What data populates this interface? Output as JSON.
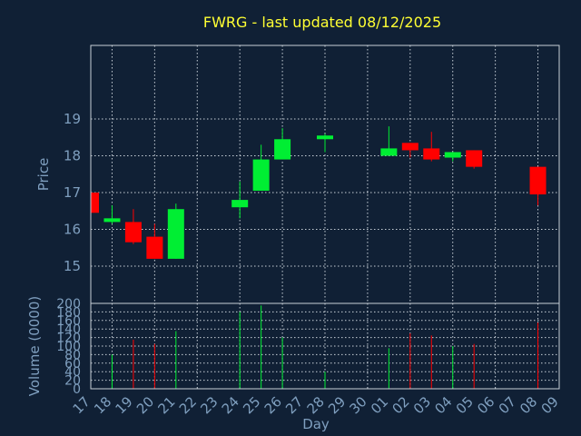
{
  "chart_data": {
    "type": "candlestick",
    "title": "FWRG - last updated 08/12/2025",
    "xlabel": "Day",
    "price_ylabel": "Price",
    "volume_ylabel": "Volume (0000)",
    "price_yticks": [
      15,
      16,
      17,
      18,
      19
    ],
    "volume_yticks": [
      0,
      20,
      40,
      60,
      80,
      100,
      120,
      140,
      160,
      180,
      200
    ],
    "x_tick_labels": [
      "17",
      "18",
      "19",
      "20",
      "21",
      "22",
      "23",
      "24",
      "25",
      "26",
      "27",
      "28",
      "29",
      "30",
      "01",
      "02",
      "03",
      "04",
      "05",
      "06",
      "07",
      "08",
      "09"
    ],
    "grid": true,
    "candles": [
      {
        "day": "17",
        "open": 17.0,
        "high": 17.0,
        "low": 16.45,
        "close": 16.45,
        "volume": 0
      },
      {
        "day": "18",
        "open": 16.2,
        "high": 16.65,
        "low": 16.15,
        "close": 16.3,
        "volume": 80
      },
      {
        "day": "19",
        "open": 16.2,
        "high": 16.55,
        "low": 15.6,
        "close": 15.65,
        "volume": 115
      },
      {
        "day": "20",
        "open": 15.8,
        "high": 16.15,
        "low": 15.2,
        "close": 15.2,
        "volume": 105
      },
      {
        "day": "21",
        "open": 15.2,
        "high": 16.7,
        "low": 15.2,
        "close": 16.55,
        "volume": 135
      },
      {
        "day": "24",
        "open": 16.6,
        "high": 17.3,
        "low": 16.3,
        "close": 16.8,
        "volume": 180
      },
      {
        "day": "25",
        "open": 17.05,
        "high": 18.3,
        "low": 17.05,
        "close": 17.9,
        "volume": 195
      },
      {
        "day": "26",
        "open": 17.9,
        "high": 18.75,
        "low": 17.9,
        "close": 18.45,
        "volume": 120
      },
      {
        "day": "28",
        "open": 18.45,
        "high": 18.6,
        "low": 18.1,
        "close": 18.55,
        "volume": 40
      },
      {
        "day": "01",
        "open": 18.0,
        "high": 18.8,
        "low": 18.0,
        "close": 18.2,
        "volume": 95
      },
      {
        "day": "02",
        "open": 18.35,
        "high": 18.35,
        "low": 17.95,
        "close": 18.15,
        "volume": 130
      },
      {
        "day": "03",
        "open": 18.2,
        "high": 18.65,
        "low": 17.85,
        "close": 17.9,
        "volume": 125
      },
      {
        "day": "04",
        "open": 17.95,
        "high": 18.1,
        "low": 17.85,
        "close": 18.1,
        "volume": 100
      },
      {
        "day": "05",
        "open": 18.15,
        "high": 18.15,
        "low": 17.65,
        "close": 17.7,
        "volume": 105
      },
      {
        "day": "08",
        "open": 17.7,
        "high": 17.7,
        "low": 16.65,
        "close": 16.95,
        "volume": 155
      }
    ],
    "colors": {
      "up": "#00ee33",
      "down": "#ff0000",
      "grid": "#c8d0d8",
      "title": "#ffff33",
      "text": "#7f9fbf",
      "background": "#102035"
    }
  }
}
